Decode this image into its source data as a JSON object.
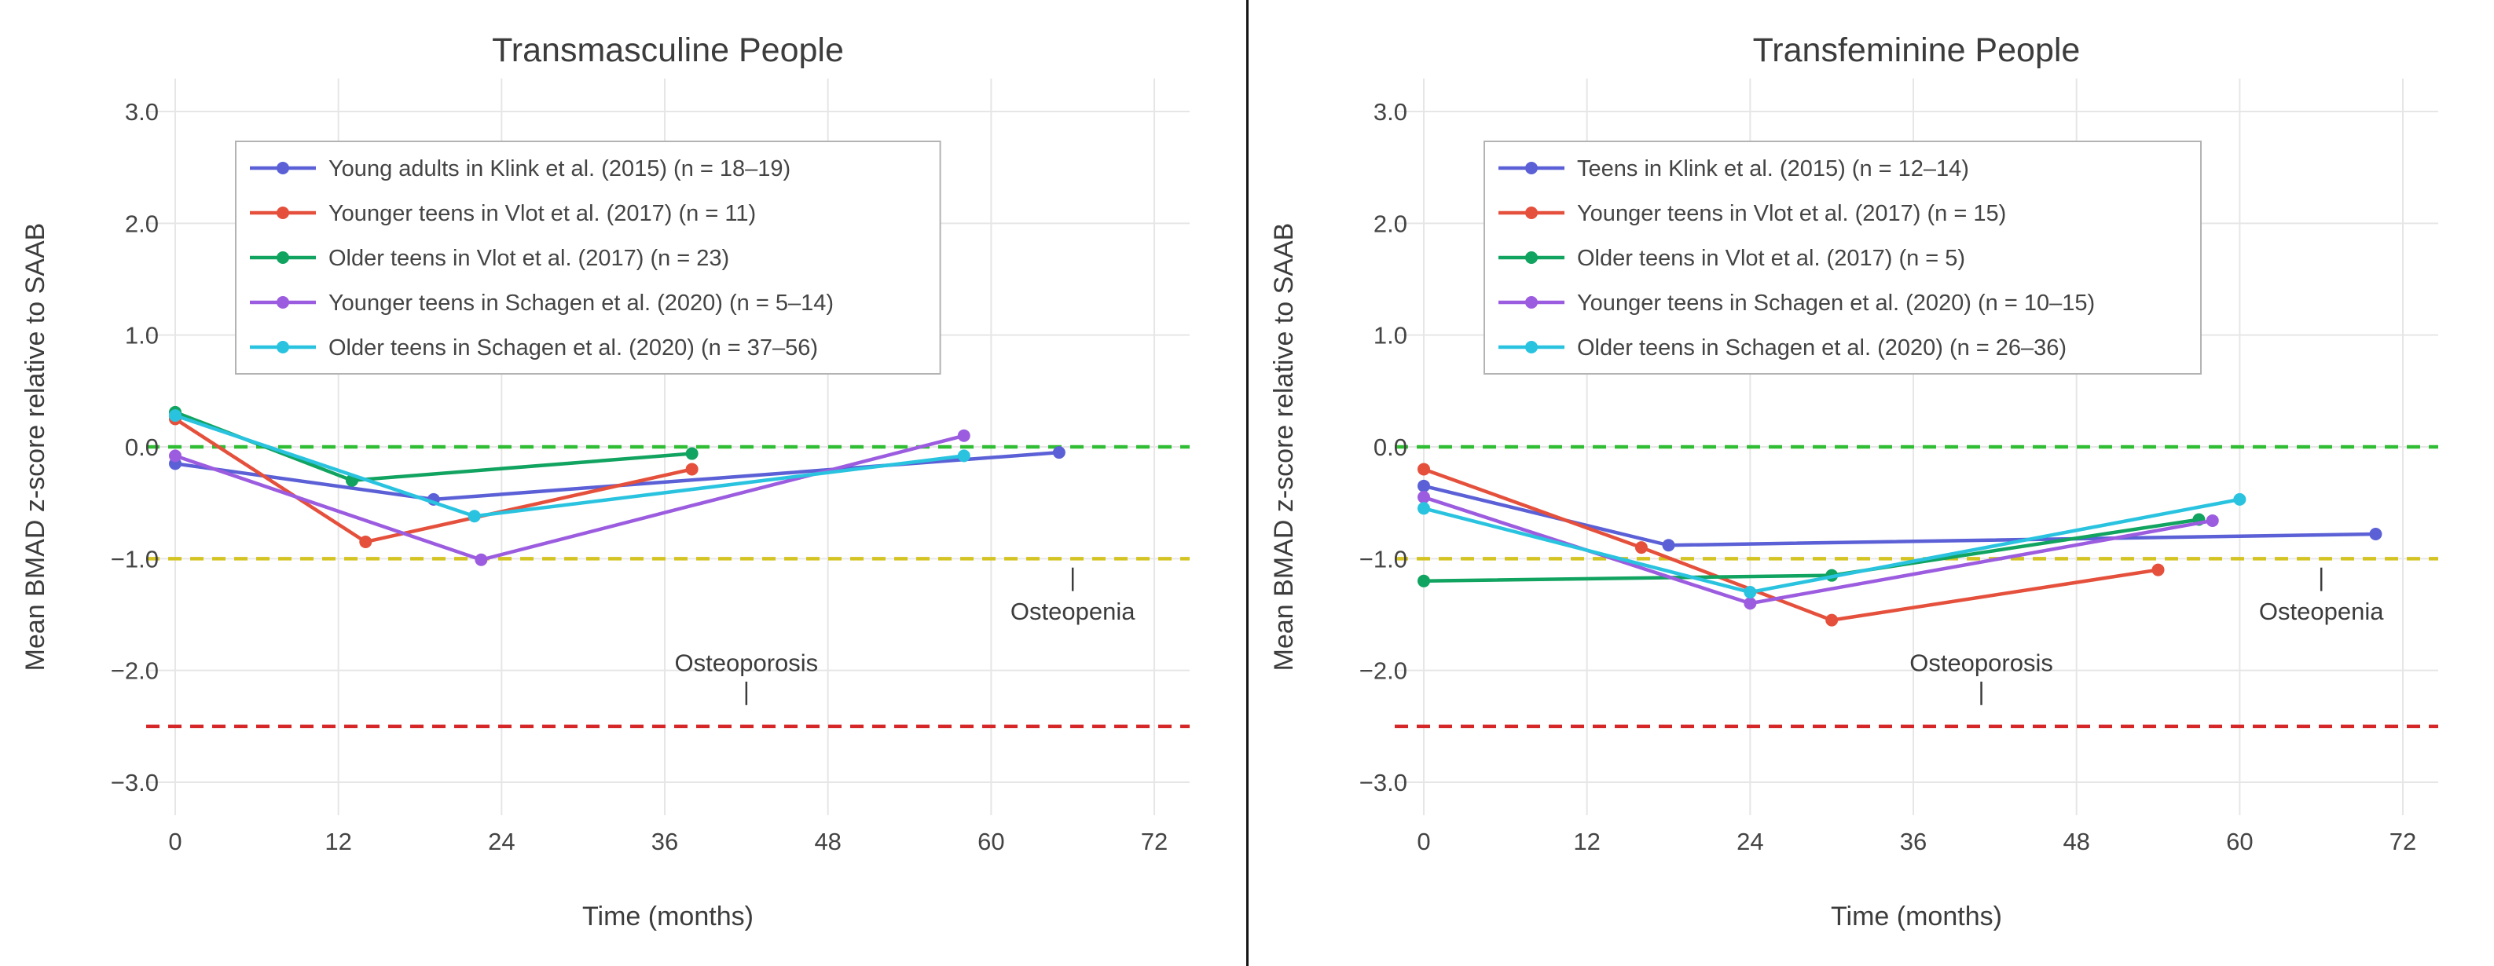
{
  "page": {
    "background": "#ffffff",
    "divider_color": "#151515"
  },
  "style": {
    "grid_color": "#e6e6e6",
    "text_color": "#444444",
    "title_color": "#3c3c3c",
    "legend_border_color": "#b3b3b3",
    "legend_background": "#ffffff",
    "annotation_color": "#3c3c3c"
  },
  "chart_data": [
    {
      "type": "line",
      "title": "Transmasculine People",
      "xlabel": "Time (months)",
      "ylabel": "Mean BMAD z-score relative to SAAB",
      "xlim": [
        -2.1,
        74.6
      ],
      "ylim": [
        -3.3,
        3.3
      ],
      "grid": true,
      "legend_position": "top-left",
      "x_ticks": [
        {
          "v": 0,
          "label": "0"
        },
        {
          "v": 12,
          "label": "12"
        },
        {
          "v": 24,
          "label": "24"
        },
        {
          "v": 36,
          "label": "36"
        },
        {
          "v": 48,
          "label": "48"
        },
        {
          "v": 60,
          "label": "60"
        },
        {
          "v": 72,
          "label": "72"
        }
      ],
      "y_ticks": [
        {
          "v": 3,
          "label": "3.0"
        },
        {
          "v": 2,
          "label": "2.0"
        },
        {
          "v": 1,
          "label": "1.0"
        },
        {
          "v": 0,
          "label": "0.0"
        },
        {
          "v": -1,
          "label": "−1.0"
        },
        {
          "v": -2,
          "label": "−2.0"
        },
        {
          "v": -3,
          "label": "−3.0"
        }
      ],
      "reference_lines": [
        {
          "y": 0.0,
          "color": "#2fbd33",
          "dash": true,
          "name": "zero-line"
        },
        {
          "y": -1.0,
          "color": "#d4c422",
          "dash": true,
          "name": "osteopenia-threshold-line"
        },
        {
          "y": -2.5,
          "color": "#d62728",
          "dash": true,
          "name": "osteoporosis-threshold-line"
        }
      ],
      "annotations": [
        {
          "text": "Osteoporosis",
          "x": 42,
          "y": -1.93,
          "tick_x": 42,
          "tick_y1": -2.1,
          "tick_y2": -2.31
        },
        {
          "text": "Osteopenia",
          "x": 66,
          "y": -1.47,
          "tick_x": 66,
          "tick_y1": -1.08,
          "tick_y2": -1.29
        }
      ],
      "series": [
        {
          "name": "Young adults in Klink et al. (2015) (n = 18–19)",
          "color": "#5b60d6",
          "x": [
            0,
            19,
            65
          ],
          "y": [
            -0.15,
            -0.47,
            -0.05
          ]
        },
        {
          "name": "Younger teens in Vlot et al. (2017) (n = 11)",
          "color": "#e5503c",
          "x": [
            0,
            14,
            38
          ],
          "y": [
            0.25,
            -0.85,
            -0.2
          ]
        },
        {
          "name": "Older teens in Vlot et al. (2017) (n = 23)",
          "color": "#11a360",
          "x": [
            0,
            13,
            38
          ],
          "y": [
            0.31,
            -0.3,
            -0.06
          ]
        },
        {
          "name": "Younger teens in Schagen et al. (2020) (n = 5–14)",
          "color": "#9c5cdf",
          "x": [
            0,
            22.5,
            58
          ],
          "y": [
            -0.08,
            -1.01,
            0.1
          ]
        },
        {
          "name": "Older teens in Schagen et al. (2020) (n = 37–56)",
          "color": "#29c3e0",
          "x": [
            0,
            22,
            58
          ],
          "y": [
            0.28,
            -0.62,
            -0.08
          ]
        }
      ]
    },
    {
      "type": "line",
      "title": "Transfeminine People",
      "xlabel": "Time (months)",
      "ylabel": "Mean BMAD z-score relative to SAAB",
      "xlim": [
        -2.1,
        74.6
      ],
      "ylim": [
        -3.3,
        3.3
      ],
      "grid": true,
      "legend_position": "top-left",
      "x_ticks": [
        {
          "v": 0,
          "label": "0"
        },
        {
          "v": 12,
          "label": "12"
        },
        {
          "v": 24,
          "label": "24"
        },
        {
          "v": 36,
          "label": "36"
        },
        {
          "v": 48,
          "label": "48"
        },
        {
          "v": 60,
          "label": "60"
        },
        {
          "v": 72,
          "label": "72"
        }
      ],
      "y_ticks": [
        {
          "v": 3,
          "label": "3.0"
        },
        {
          "v": 2,
          "label": "2.0"
        },
        {
          "v": 1,
          "label": "1.0"
        },
        {
          "v": 0,
          "label": "0.0"
        },
        {
          "v": -1,
          "label": "−1.0"
        },
        {
          "v": -2,
          "label": "−2.0"
        },
        {
          "v": -3,
          "label": "−3.0"
        }
      ],
      "reference_lines": [
        {
          "y": 0.0,
          "color": "#2fbd33",
          "dash": true,
          "name": "zero-line"
        },
        {
          "y": -1.0,
          "color": "#d4c422",
          "dash": true,
          "name": "osteopenia-threshold-line"
        },
        {
          "y": -2.5,
          "color": "#d62728",
          "dash": true,
          "name": "osteoporosis-threshold-line"
        }
      ],
      "annotations": [
        {
          "text": "Osteoporosis",
          "x": 41,
          "y": -1.93,
          "tick_x": 41,
          "tick_y1": -2.1,
          "tick_y2": -2.31
        },
        {
          "text": "Osteopenia",
          "x": 66,
          "y": -1.47,
          "tick_x": 66,
          "tick_y1": -1.08,
          "tick_y2": -1.29
        }
      ],
      "series": [
        {
          "name": "Teens in Klink et al. (2015) (n = 12–14)",
          "color": "#5b60d6",
          "x": [
            0,
            18,
            70
          ],
          "y": [
            -0.35,
            -0.88,
            -0.78
          ]
        },
        {
          "name": "Younger teens in Vlot et al. (2017) (n = 15)",
          "color": "#e5503c",
          "x": [
            0,
            16,
            30,
            54
          ],
          "y": [
            -0.2,
            -0.9,
            -1.55,
            -1.1
          ]
        },
        {
          "name": "Older teens in Vlot et al. (2017) (n = 5)",
          "color": "#11a360",
          "x": [
            0,
            30,
            57
          ],
          "y": [
            -1.2,
            -1.15,
            -0.65
          ]
        },
        {
          "name": "Younger teens in Schagen et al. (2020) (n = 10–15)",
          "color": "#9c5cdf",
          "x": [
            0,
            24,
            58
          ],
          "y": [
            -0.45,
            -1.4,
            -0.66
          ]
        },
        {
          "name": "Older teens in Schagen et al. (2020) (n = 26–36)",
          "color": "#29c3e0",
          "x": [
            0,
            24,
            60
          ],
          "y": [
            -0.55,
            -1.3,
            -0.47
          ]
        }
      ]
    }
  ]
}
